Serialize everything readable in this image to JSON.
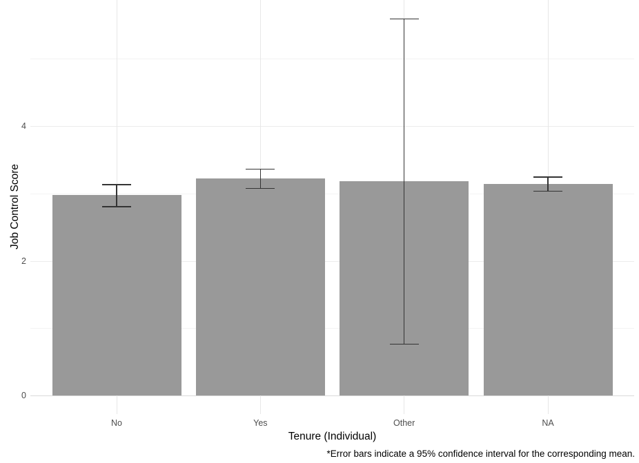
{
  "figure": {
    "background": "#ffffff"
  },
  "chart_data": {
    "type": "bar",
    "title": "",
    "xlabel": "Tenure (Individual)",
    "ylabel": "Job Control Score",
    "categories": [
      "No",
      "Yes",
      "Other",
      "NA"
    ],
    "values": [
      2.98,
      3.22,
      3.18,
      3.14
    ],
    "ci_low": [
      2.81,
      3.08,
      0.77,
      3.04
    ],
    "ci_high": [
      3.14,
      3.37,
      5.6,
      3.25
    ],
    "yticks": [
      0,
      2,
      4
    ],
    "yminor": [
      1,
      3,
      5
    ],
    "ylim": [
      0,
      5.87
    ],
    "grid": "major+minor",
    "legend": "none",
    "bar_color": "#999999",
    "errorbar_color": "#333333",
    "annotation": "*Error bars indicate a 95% confidence interval for the corresponding mean."
  }
}
